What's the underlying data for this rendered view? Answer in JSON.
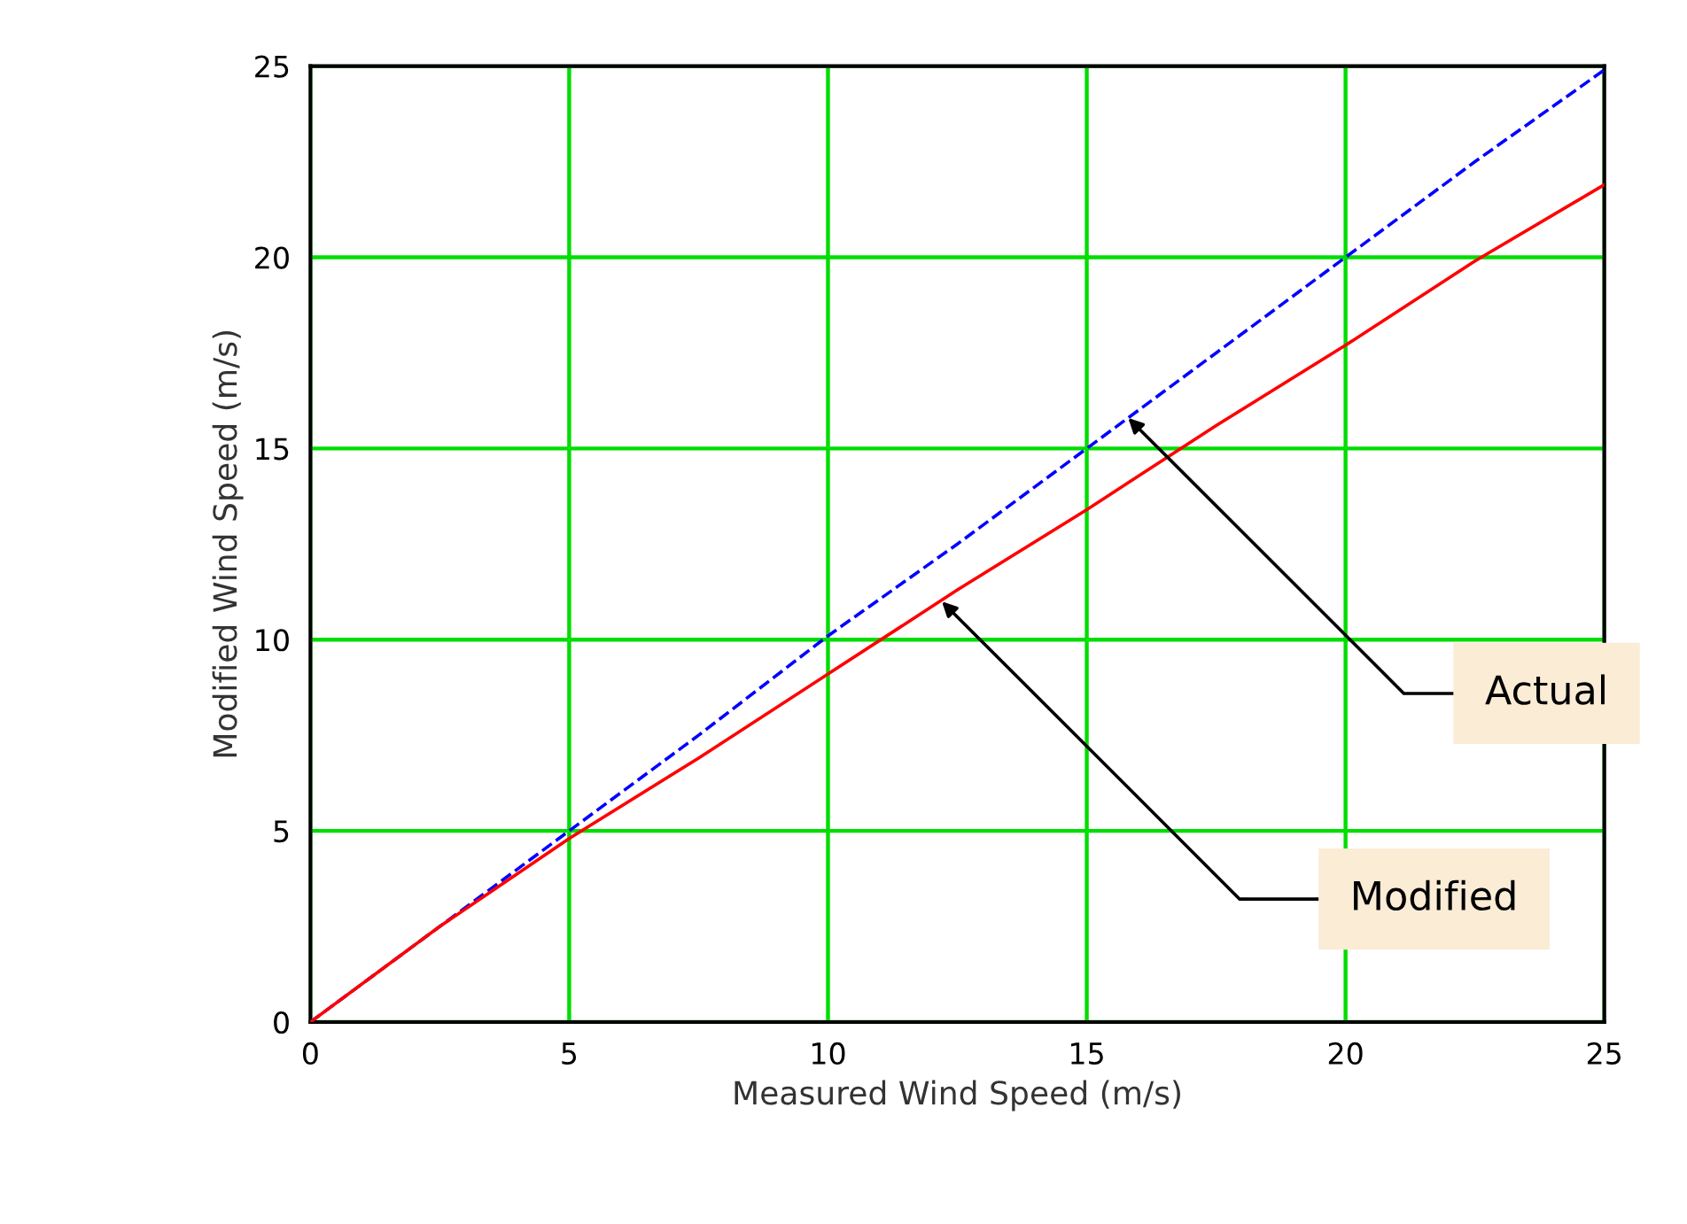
{
  "chart_data": {
    "type": "line",
    "xlabel": "Measured Wind Speed (m/s)",
    "ylabel": "Modified Wind Speed (m/s)",
    "x": [
      0,
      2.5,
      5,
      7.5,
      10,
      12.5,
      15,
      17.5,
      20,
      22.5,
      25
    ],
    "series": [
      {
        "color": "#0000ff",
        "line_style": "dashed",
        "values": [
          0,
          2.5,
          5,
          7.5,
          10.1,
          12.5,
          15,
          17.5,
          20,
          22.5,
          24.9
        ]
      },
      {
        "color": "#ff0000",
        "line_style": "solid",
        "values": [
          0,
          2.5,
          4.8,
          6.9,
          9.1,
          11.3,
          13.4,
          15.6,
          17.7,
          19.9,
          21.9
        ]
      }
    ],
    "xlim": [
      0,
      25
    ],
    "ylim": [
      0,
      25
    ],
    "xticks": [
      0,
      5,
      10,
      15,
      20,
      25
    ],
    "yticks": [
      0,
      5,
      10,
      15,
      20,
      25
    ],
    "grid": true,
    "legend": false,
    "annotations": [
      {
        "text": "Actual",
        "x": 15.8,
        "y": 15.8
      },
      {
        "text": "Modified",
        "x": 12.2,
        "y": 11
      }
    ]
  }
}
